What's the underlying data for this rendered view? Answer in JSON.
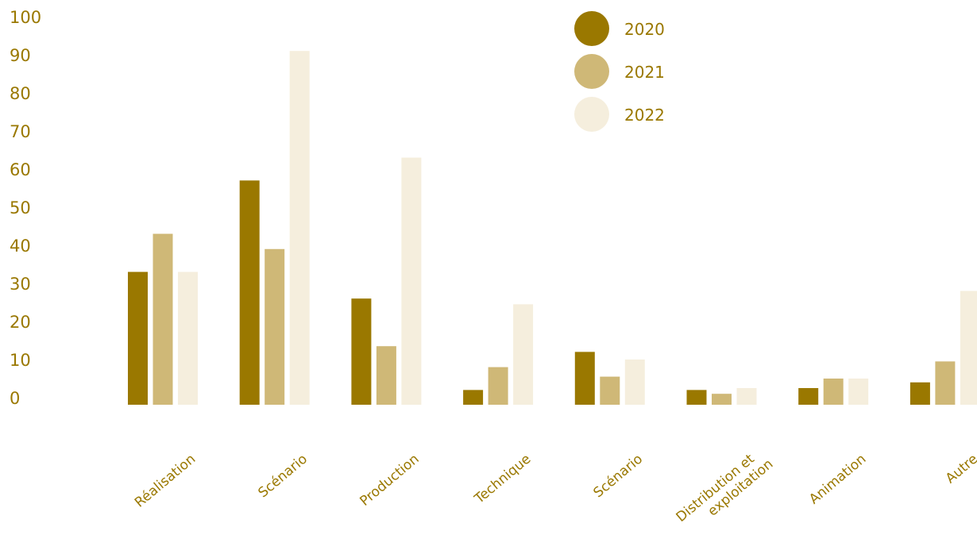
{
  "chart_data": {
    "type": "bar",
    "categories": [
      "Réalisation",
      "Scénario",
      "Production",
      "Technique",
      "Scénario",
      "Distribution et exploitation",
      "Animation",
      "Autre"
    ],
    "series": [
      {
        "name": "2020",
        "color": "#9a7800",
        "values": [
          33,
          57,
          26,
          2,
          12,
          2,
          2.5,
          4
        ]
      },
      {
        "name": "2021",
        "color": "#cfb877",
        "values": [
          43,
          39,
          13.5,
          8,
          5.5,
          1,
          5,
          9.5
        ]
      },
      {
        "name": "2022",
        "color": "#f5eedd",
        "values": [
          33,
          91,
          63,
          24.5,
          10,
          2.5,
          5,
          28
        ]
      }
    ],
    "y_ticks": [
      "0",
      "10",
      "20",
      "30",
      "40",
      "50",
      "60",
      "70",
      "80",
      "90",
      "100"
    ],
    "ylim": [
      0,
      100
    ],
    "title": "",
    "xlabel": "",
    "ylabel": "",
    "legend_position": "top-right",
    "grid": false,
    "text_color": "#9a7800"
  }
}
